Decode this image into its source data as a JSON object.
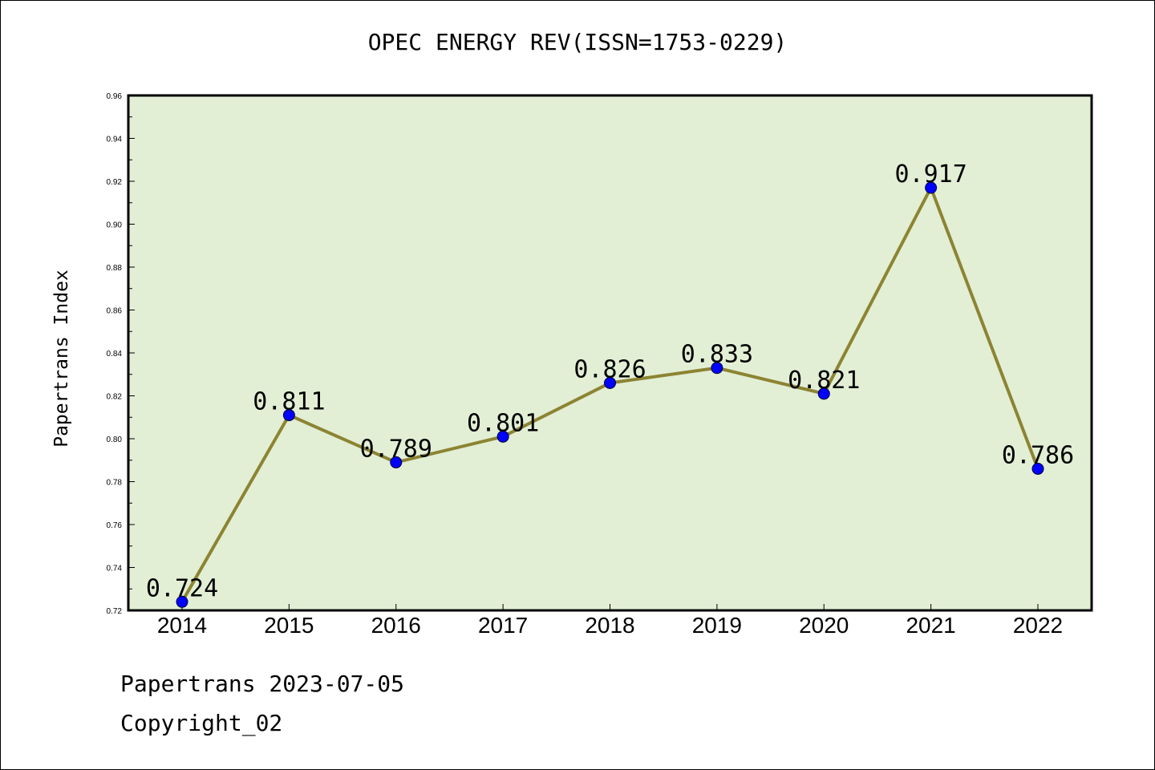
{
  "chart_data": {
    "type": "line",
    "title": "OPEC ENERGY REV(ISSN=1753-0229)",
    "xlabel": "",
    "ylabel": "Papertrans Index",
    "categories": [
      "2014",
      "2015",
      "2016",
      "2017",
      "2018",
      "2019",
      "2020",
      "2021",
      "2022"
    ],
    "values": [
      0.724,
      0.811,
      0.789,
      0.801,
      0.826,
      0.833,
      0.821,
      0.917,
      0.786
    ],
    "data_labels": [
      "0.724",
      "0.811",
      "0.789",
      "0.801",
      "0.826",
      "0.833",
      "0.821",
      "0.917",
      "0.786"
    ],
    "ylim": [
      0.72,
      0.96
    ],
    "yticks": [
      "0.72",
      "0.74",
      "0.76",
      "0.78",
      "0.80",
      "0.82",
      "0.84",
      "0.86",
      "0.88",
      "0.90",
      "0.92",
      "0.94",
      "0.96"
    ],
    "grid": false,
    "colors": {
      "plot_background": "#e2efd5",
      "line": "#8c8432",
      "marker": "#0000ff"
    }
  },
  "footer": {
    "date_text": "Papertrans 2023-07-05",
    "copyright": "Copyright_02"
  }
}
